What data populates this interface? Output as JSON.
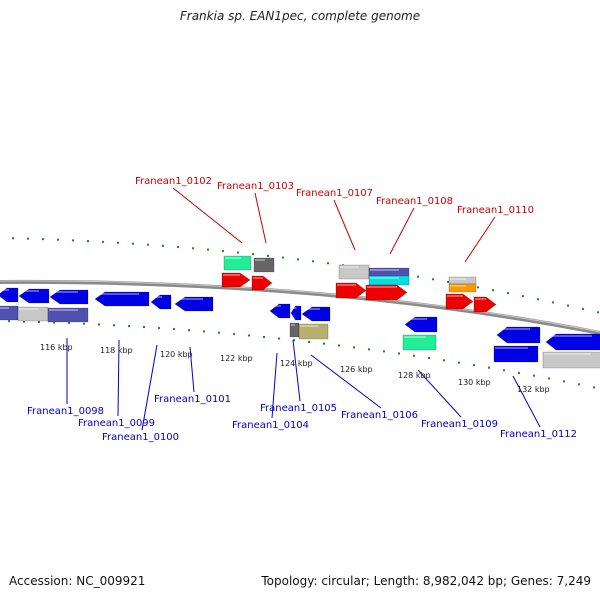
{
  "title": "Frankia sp. EAN1pec, complete genome",
  "footer": {
    "accession": "Accession: NC_009921",
    "topology": "Topology: circular; Length: 8,982,042 bp; Genes: 7,249"
  },
  "colors": {
    "forward_label": "#cc0000",
    "reverse_label": "#0000cc",
    "tick": "#1a8a1a",
    "backbone": "#8a8a8a",
    "blue_gene": "#0000e6",
    "red_gene": "#ee0000",
    "green_gene": "#22ee99",
    "gray_gene": "#666666",
    "silver_gene": "#c8c8c8",
    "purple_gene": "#5050b0",
    "cyan_gene": "#00e0e0",
    "orange_gene": "#ff9900",
    "olive_gene": "#b8b070"
  },
  "kbp_labels": [
    "116 kbp",
    "118 kbp",
    "120 kbp",
    "122 kbp",
    "124 kbp",
    "126 kbp",
    "128 kbp",
    "130 kbp",
    "132 kbp"
  ],
  "forward_genes": [
    "Franean1_0102",
    "Franean1_0103",
    "Franean1_0107",
    "Franean1_0108",
    "Franean1_0110"
  ],
  "reverse_genes": [
    "Franean1_0098",
    "Franean1_0099",
    "Franean1_0100",
    "Franean1_0101",
    "Franean1_0104",
    "Franean1_0105",
    "Franean1_0106",
    "Franean1_0109",
    "Franean1_0112"
  ]
}
